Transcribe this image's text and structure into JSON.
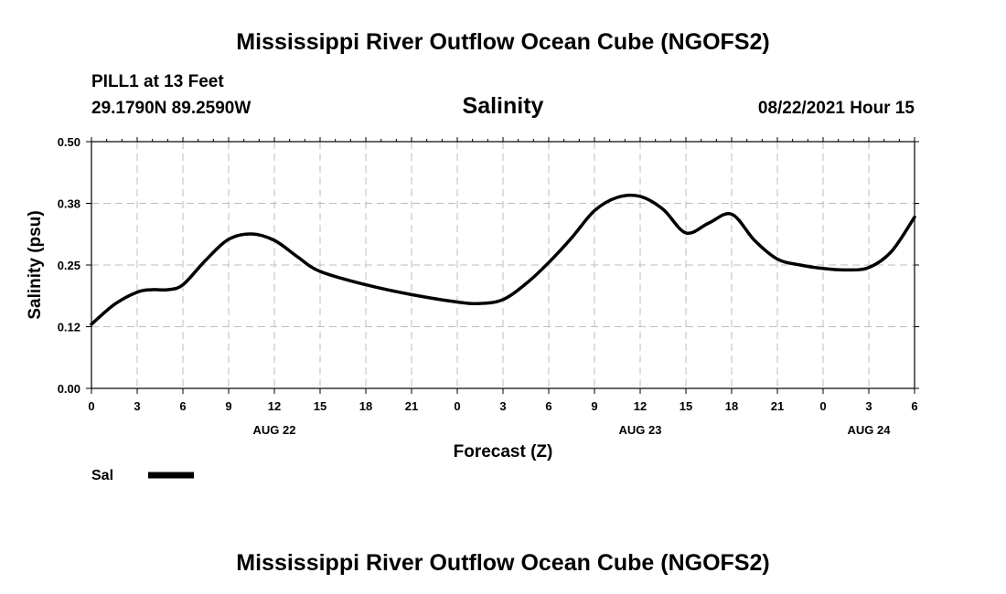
{
  "header": {
    "title": "Mississippi River Outflow Ocean Cube (NGOFS2)",
    "station": "PILL1 at 13 Feet",
    "coords": "29.1790N  89.2590W",
    "variable": "Salinity",
    "datetime": "08/22/2021 Hour 15"
  },
  "footer": {
    "title": "Mississippi River Outflow Ocean Cube (NGOFS2)"
  },
  "legend": {
    "label": "Sal",
    "color": "#000000"
  },
  "chart_data": {
    "type": "line",
    "title": "Salinity",
    "xlabel": "Forecast (Z)",
    "ylabel": "Salinity (psu)",
    "xlim": [
      0,
      54
    ],
    "ylim": [
      0,
      0.5
    ],
    "grid": true,
    "xticks": [
      0,
      3,
      6,
      9,
      12,
      15,
      18,
      21,
      24,
      27,
      30,
      33,
      36,
      39,
      42,
      45,
      48,
      51,
      54
    ],
    "xtick_labels": [
      "0",
      "3",
      "6",
      "9",
      "12",
      "15",
      "18",
      "21",
      "0",
      "3",
      "6",
      "9",
      "12",
      "15",
      "18",
      "21",
      "0",
      "3",
      "6"
    ],
    "yticks": [
      0,
      0.125,
      0.25,
      0.375,
      0.5
    ],
    "ytick_labels": [
      "0.00",
      "0.12",
      "0.25",
      "0.38",
      "0.50"
    ],
    "date_labels": [
      {
        "x": 12,
        "label": "AUG 22"
      },
      {
        "x": 36,
        "label": "AUG 23"
      },
      {
        "x": 51,
        "label": "AUG 24"
      }
    ],
    "series": [
      {
        "name": "Sal",
        "x": [
          0,
          1.5,
          3,
          4,
          5,
          6,
          7.5,
          9,
          10.5,
          12,
          13.5,
          15,
          18,
          21,
          24,
          25.5,
          27,
          28.5,
          30,
          31.5,
          33,
          34.5,
          36,
          37.5,
          39,
          40.5,
          42,
          43.5,
          45,
          46.5,
          48,
          49.5,
          51,
          52.5,
          54
        ],
        "values": [
          0.13,
          0.17,
          0.195,
          0.2,
          0.2,
          0.21,
          0.26,
          0.302,
          0.313,
          0.3,
          0.267,
          0.237,
          0.21,
          0.19,
          0.175,
          0.172,
          0.18,
          0.212,
          0.255,
          0.305,
          0.36,
          0.387,
          0.389,
          0.363,
          0.315,
          0.335,
          0.353,
          0.3,
          0.262,
          0.25,
          0.243,
          0.24,
          0.245,
          0.278,
          0.347
        ]
      }
    ]
  }
}
